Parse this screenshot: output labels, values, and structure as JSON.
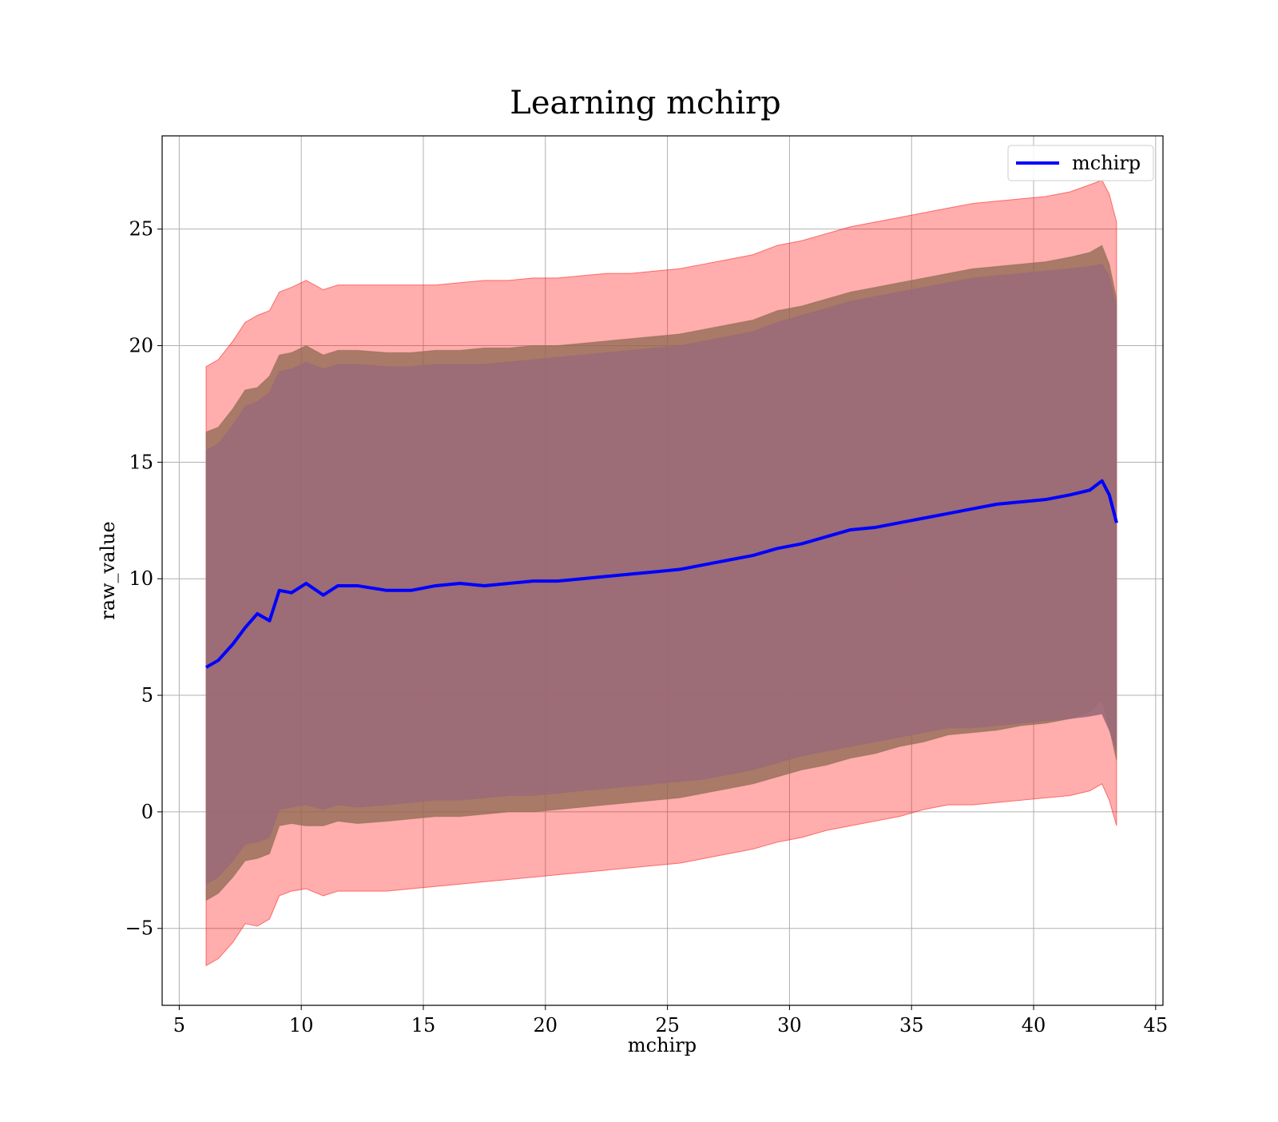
{
  "chart_data": {
    "type": "line",
    "title": "Learning mchirp",
    "xlabel": "mchirp",
    "ylabel": "raw_value",
    "xlim": [
      4.3,
      45.3
    ],
    "ylim": [
      -8.3,
      29.0
    ],
    "xticks": [
      5,
      10,
      15,
      20,
      25,
      30,
      35,
      40,
      45
    ],
    "yticks": [
      -5,
      0,
      5,
      10,
      15,
      20,
      25
    ],
    "ytick_labels": [
      "−5",
      "0",
      "5",
      "10",
      "15",
      "20",
      "25"
    ],
    "grid": true,
    "legend_position": "top-right",
    "series": [
      {
        "name": "mchirp",
        "color": "#0000ff",
        "x": [
          6.1,
          6.6,
          7.2,
          7.7,
          8.2,
          8.7,
          9.1,
          9.6,
          10.2,
          10.9,
          11.5,
          12.3,
          13.5,
          14.5,
          15.5,
          16.5,
          17.5,
          18.5,
          19.5,
          20.5,
          21.5,
          22.5,
          23.5,
          24.5,
          25.5,
          26.5,
          27.5,
          28.5,
          29.5,
          30.5,
          31.5,
          32.5,
          33.5,
          34.5,
          35.5,
          36.5,
          37.5,
          38.5,
          39.5,
          40.5,
          41.5,
          42.3,
          42.8,
          43.1,
          43.4
        ],
        "y": [
          6.2,
          6.5,
          7.2,
          7.9,
          8.5,
          8.2,
          9.5,
          9.4,
          9.8,
          9.3,
          9.7,
          9.7,
          9.5,
          9.5,
          9.7,
          9.8,
          9.7,
          9.8,
          9.9,
          9.9,
          10.0,
          10.1,
          10.2,
          10.3,
          10.4,
          10.6,
          10.8,
          11.0,
          11.3,
          11.5,
          11.8,
          12.1,
          12.2,
          12.4,
          12.6,
          12.8,
          13.0,
          13.2,
          13.3,
          13.4,
          13.6,
          13.8,
          14.2,
          13.6,
          12.4
        ]
      }
    ],
    "bands": [
      {
        "name": "outer",
        "color": "#ff0000",
        "opacity": 0.32,
        "x": [
          6.1,
          6.6,
          7.2,
          7.7,
          8.2,
          8.7,
          9.1,
          9.6,
          10.2,
          10.9,
          11.5,
          12.3,
          13.5,
          14.5,
          15.5,
          16.5,
          17.5,
          18.5,
          19.5,
          20.5,
          21.5,
          22.5,
          23.5,
          24.5,
          25.5,
          26.5,
          27.5,
          28.5,
          29.5,
          30.5,
          31.5,
          32.5,
          33.5,
          34.5,
          35.5,
          36.5,
          37.5,
          38.5,
          39.5,
          40.5,
          41.5,
          42.3,
          42.8,
          43.1,
          43.4
        ],
        "lower": [
          -6.6,
          -6.3,
          -5.6,
          -4.8,
          -4.9,
          -4.6,
          -3.6,
          -3.4,
          -3.3,
          -3.6,
          -3.4,
          -3.4,
          -3.4,
          -3.3,
          -3.2,
          -3.1,
          -3.0,
          -2.9,
          -2.8,
          -2.7,
          -2.6,
          -2.5,
          -2.4,
          -2.3,
          -2.2,
          -2.0,
          -1.8,
          -1.6,
          -1.3,
          -1.1,
          -0.8,
          -0.6,
          -0.4,
          -0.2,
          0.1,
          0.3,
          0.3,
          0.4,
          0.5,
          0.6,
          0.7,
          0.9,
          1.2,
          0.5,
          -0.6
        ],
        "upper": [
          19.1,
          19.4,
          20.2,
          21.0,
          21.3,
          21.5,
          22.3,
          22.5,
          22.8,
          22.4,
          22.6,
          22.6,
          22.6,
          22.6,
          22.6,
          22.7,
          22.8,
          22.8,
          22.9,
          22.9,
          23.0,
          23.1,
          23.1,
          23.2,
          23.3,
          23.5,
          23.7,
          23.9,
          24.3,
          24.5,
          24.8,
          25.1,
          25.3,
          25.5,
          25.7,
          25.9,
          26.1,
          26.2,
          26.3,
          26.4,
          26.6,
          26.9,
          27.1,
          26.5,
          25.3
        ]
      },
      {
        "name": "middle",
        "color": "#8b6a50",
        "opacity": 0.75,
        "x": [
          6.1,
          6.6,
          7.2,
          7.7,
          8.2,
          8.7,
          9.1,
          9.6,
          10.2,
          10.9,
          11.5,
          12.3,
          13.5,
          14.5,
          15.5,
          16.5,
          17.5,
          18.5,
          19.5,
          20.5,
          21.5,
          22.5,
          23.5,
          24.5,
          25.5,
          26.5,
          27.5,
          28.5,
          29.5,
          30.5,
          31.5,
          32.5,
          33.5,
          34.5,
          35.5,
          36.5,
          37.5,
          38.5,
          39.5,
          40.5,
          41.5,
          42.3,
          42.8,
          43.1,
          43.4
        ],
        "lower": [
          -3.8,
          -3.5,
          -2.8,
          -2.1,
          -2.0,
          -1.8,
          -0.6,
          -0.5,
          -0.6,
          -0.6,
          -0.4,
          -0.5,
          -0.4,
          -0.3,
          -0.2,
          -0.2,
          -0.1,
          0.0,
          0.0,
          0.1,
          0.2,
          0.3,
          0.4,
          0.5,
          0.6,
          0.8,
          1.0,
          1.2,
          1.5,
          1.8,
          2.0,
          2.3,
          2.5,
          2.8,
          3.0,
          3.3,
          3.4,
          3.5,
          3.7,
          3.8,
          4.0,
          4.3,
          4.8,
          3.6,
          2.2
        ],
        "upper": [
          16.3,
          16.5,
          17.3,
          18.1,
          18.2,
          18.7,
          19.6,
          19.7,
          20.0,
          19.6,
          19.8,
          19.8,
          19.7,
          19.7,
          19.8,
          19.8,
          19.9,
          19.9,
          20.0,
          20.0,
          20.1,
          20.2,
          20.3,
          20.4,
          20.5,
          20.7,
          20.9,
          21.1,
          21.5,
          21.7,
          22.0,
          22.3,
          22.5,
          22.7,
          22.9,
          23.1,
          23.3,
          23.4,
          23.5,
          23.6,
          23.8,
          24.0,
          24.3,
          23.5,
          22.0
        ]
      },
      {
        "name": "inner",
        "color": "#9b6a78",
        "opacity": 0.92,
        "x": [
          6.1,
          6.6,
          7.2,
          7.7,
          8.2,
          8.7,
          9.1,
          9.6,
          10.2,
          10.9,
          11.5,
          12.3,
          13.5,
          14.5,
          15.5,
          16.5,
          17.5,
          18.5,
          19.5,
          20.5,
          21.5,
          22.5,
          23.5,
          24.5,
          25.5,
          26.5,
          27.5,
          28.5,
          29.5,
          30.5,
          31.5,
          32.5,
          33.5,
          34.5,
          35.5,
          36.5,
          37.5,
          38.5,
          39.5,
          40.5,
          41.5,
          42.3,
          42.8,
          43.1,
          43.4
        ],
        "lower": [
          -3.1,
          -2.8,
          -2.1,
          -1.4,
          -1.3,
          -1.1,
          0.1,
          0.2,
          0.3,
          0.1,
          0.3,
          0.2,
          0.3,
          0.4,
          0.5,
          0.5,
          0.6,
          0.7,
          0.7,
          0.8,
          0.9,
          1.0,
          1.1,
          1.2,
          1.3,
          1.4,
          1.6,
          1.8,
          2.1,
          2.4,
          2.6,
          2.8,
          3.0,
          3.2,
          3.4,
          3.6,
          3.6,
          3.7,
          3.8,
          3.9,
          4.0,
          4.1,
          4.2,
          3.5,
          2.6
        ],
        "upper": [
          15.5,
          15.8,
          16.6,
          17.4,
          17.6,
          18.0,
          18.9,
          19.0,
          19.3,
          19.0,
          19.2,
          19.2,
          19.1,
          19.1,
          19.2,
          19.2,
          19.2,
          19.3,
          19.4,
          19.5,
          19.6,
          19.7,
          19.8,
          19.9,
          20.0,
          20.2,
          20.4,
          20.6,
          21.0,
          21.3,
          21.6,
          21.9,
          22.1,
          22.3,
          22.5,
          22.7,
          22.9,
          23.0,
          23.1,
          23.2,
          23.3,
          23.4,
          23.5,
          23.0,
          21.6
        ]
      }
    ]
  }
}
